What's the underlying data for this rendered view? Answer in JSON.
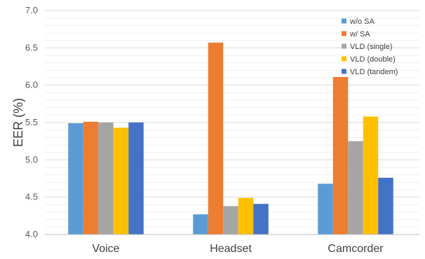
{
  "chart_data": {
    "type": "bar",
    "title": "",
    "xlabel": "",
    "ylabel": "EER (%)",
    "categories": [
      "Voice",
      "Headset",
      "Camcorder"
    ],
    "ylim": [
      4.0,
      7.0
    ],
    "yticks": [
      "4.0",
      "4.5",
      "5.0",
      "5.5",
      "6.0",
      "6.5",
      "7.0"
    ],
    "grid": true,
    "legend_position": "top-right",
    "series": [
      {
        "name": "w/o SA",
        "color": "#5B9BD5",
        "values": [
          5.49,
          4.27,
          4.68
        ]
      },
      {
        "name": "w/ SA",
        "color": "#ED7D31",
        "values": [
          5.51,
          6.57,
          6.11
        ]
      },
      {
        "name": "VLD (single)",
        "color": "#A5A5A5",
        "values": [
          5.5,
          4.38,
          5.25
        ]
      },
      {
        "name": "VLD (double)",
        "color": "#FFC000",
        "values": [
          5.43,
          4.49,
          5.58
        ]
      },
      {
        "name": "VLD (tandem)",
        "color": "#4472C4",
        "values": [
          5.5,
          4.41,
          4.76
        ]
      }
    ]
  }
}
